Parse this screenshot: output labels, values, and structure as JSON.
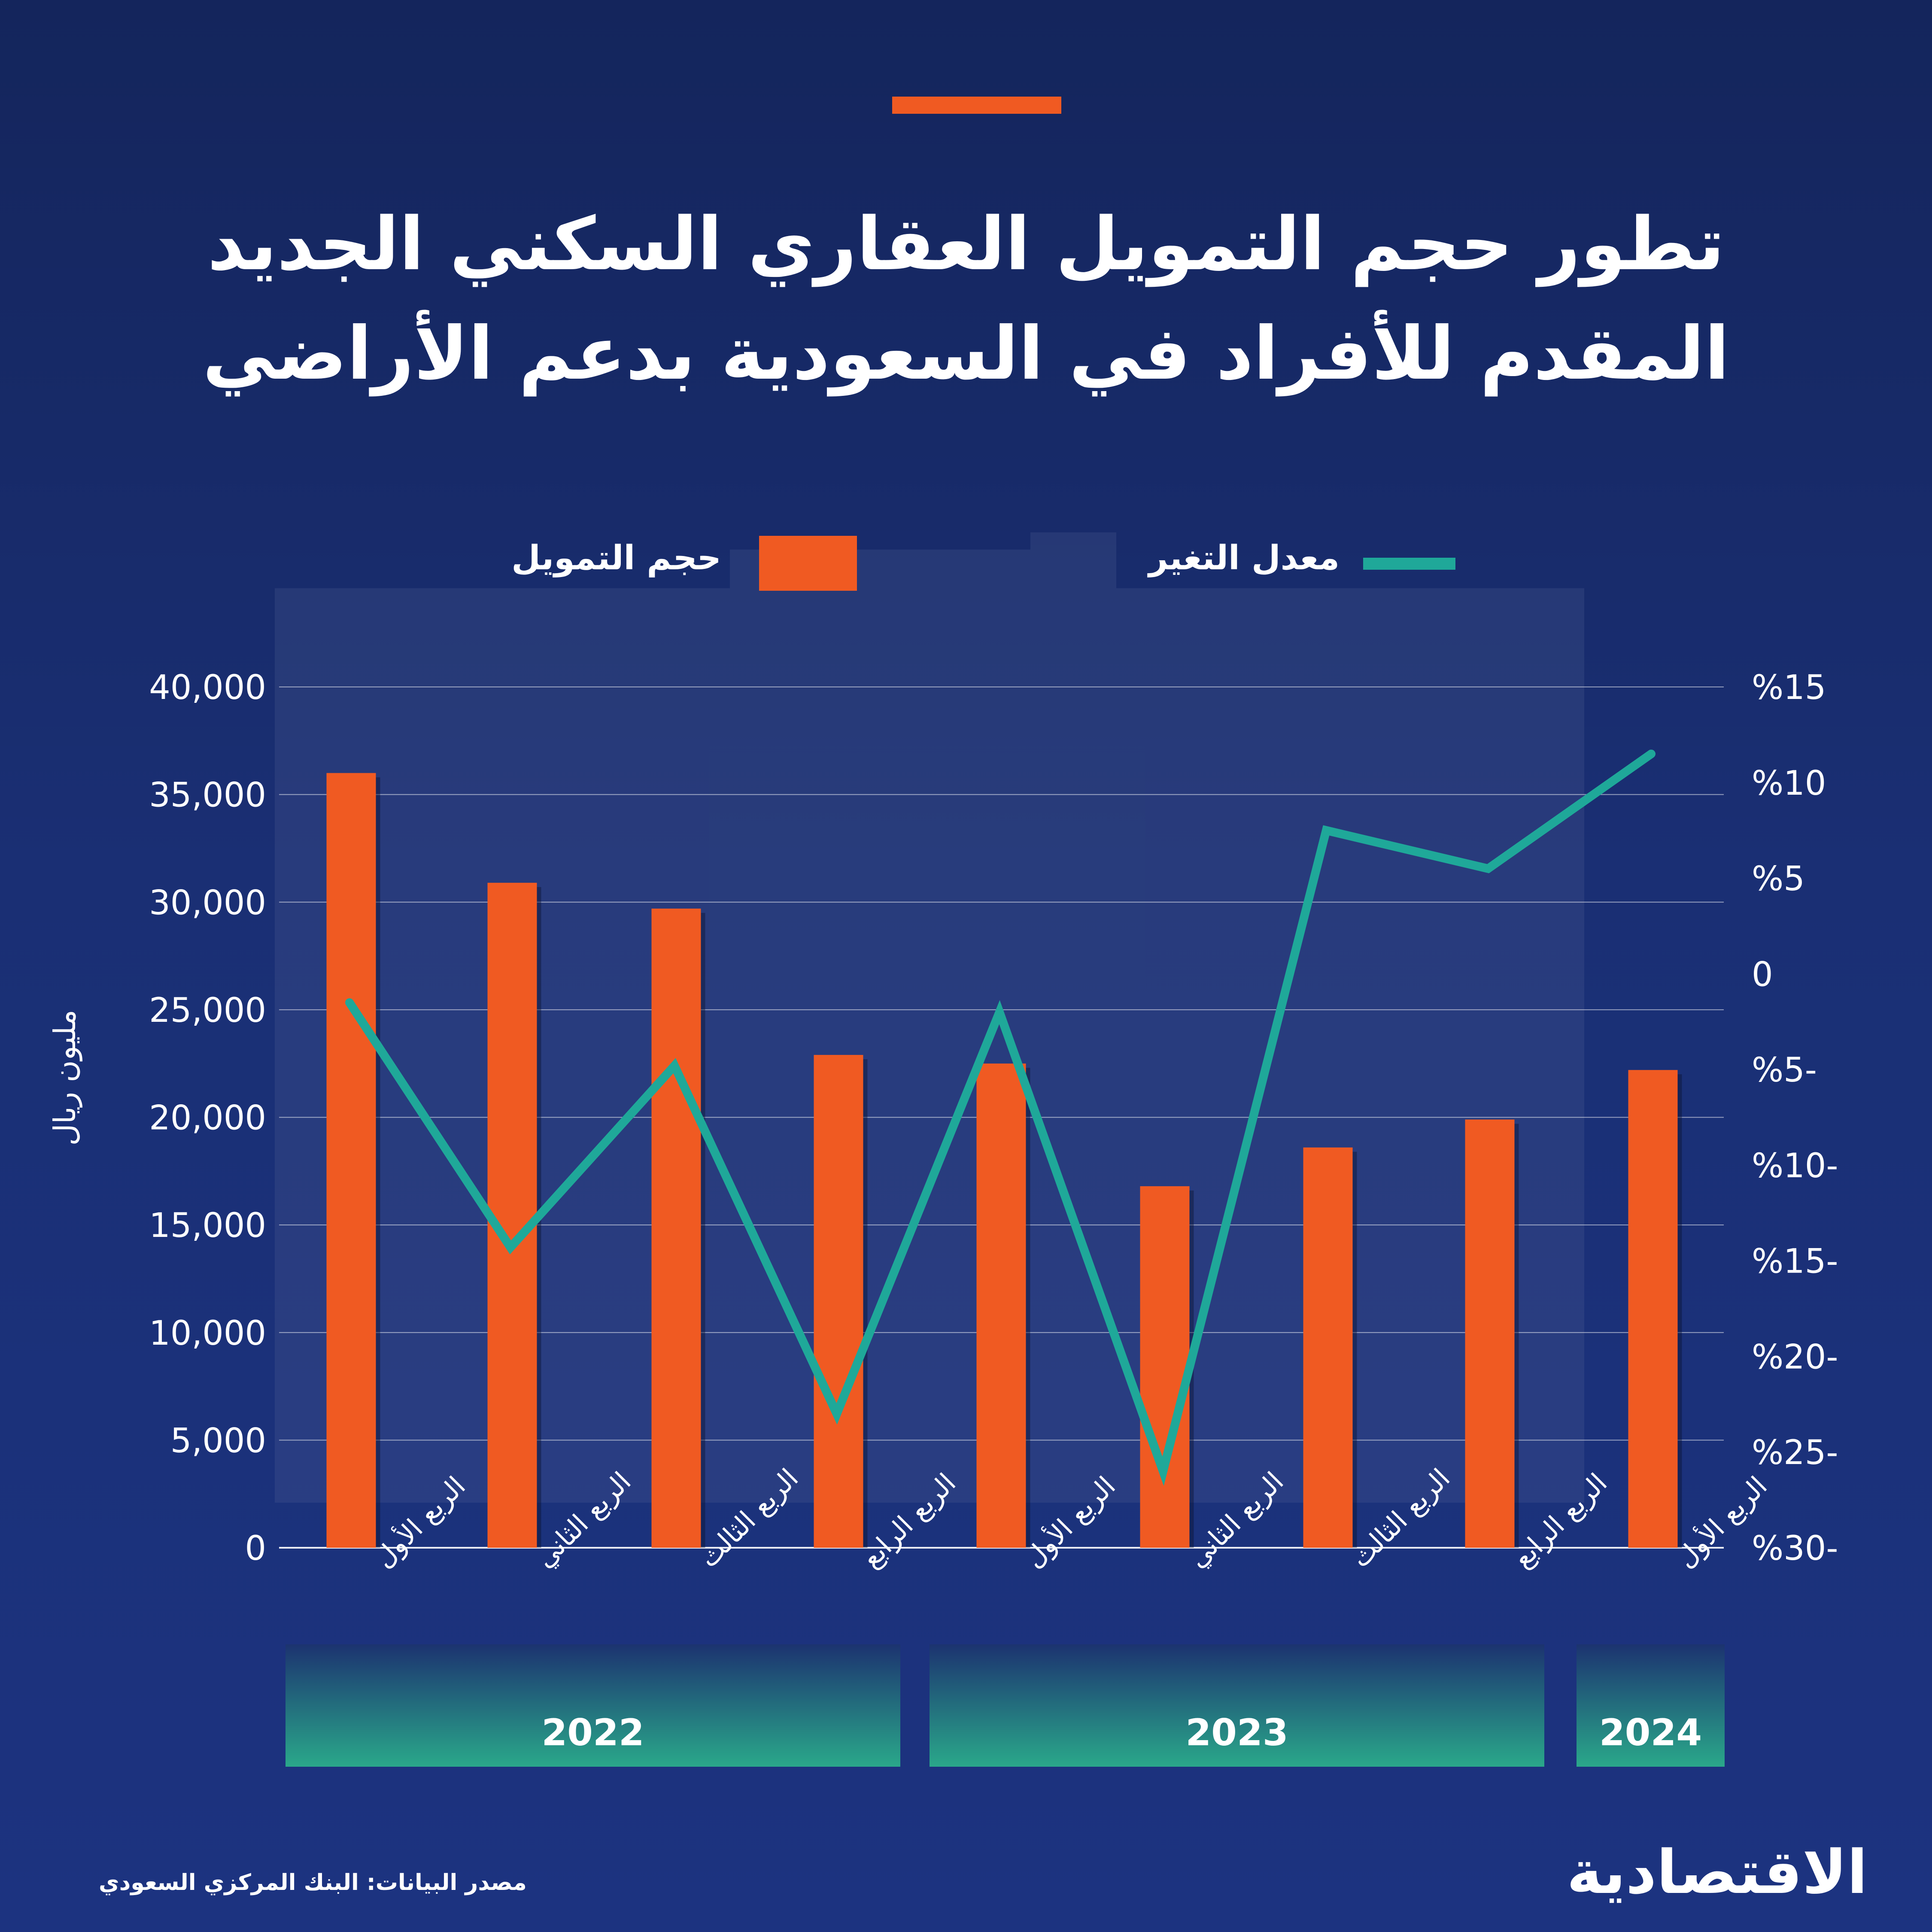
{
  "title_lines": [
    "تطور حجم التمويل العقاري السكني الجديد",
    "المقدم للأفراد في السعودية بدعم الأراضي"
  ],
  "legend": {
    "bars_label": "حجم التمويل",
    "line_label": "معدل التغير"
  },
  "source": "مصدر البيانات: البنك المركزي السعودي",
  "logo_text": "الاقتصادية",
  "colors": {
    "accent": "#f05a22",
    "line": "#1fa899",
    "year_band_top": "#1c3370",
    "year_band_bottom": "#2aa88a"
  },
  "chart_data": {
    "type": "bar",
    "ylabel": "مليون ريال",
    "ylim": [
      0,
      40000
    ],
    "y_ticks": [
      "0",
      "5,000",
      "10,000",
      "15,000",
      "20,000",
      "25,000",
      "30,000",
      "35,000",
      "40,000"
    ],
    "y2lim": [
      -30,
      15
    ],
    "y2_ticks": [
      "%30-",
      "%25-",
      "%20-",
      "%15-",
      "%10-",
      "%5-",
      "0",
      "%5",
      "%10",
      "%15"
    ],
    "categories": [
      "الربع الأول",
      "الربع الثاني",
      "الربع الثالث",
      "الربع الرابع",
      "الربع الأول",
      "الربع الثاني",
      "الربع الثالث",
      "الربع الرابع",
      "الربع الأول"
    ],
    "year_groups": [
      {
        "label": "2022",
        "start": 0,
        "end": 3
      },
      {
        "label": "2023",
        "start": 4,
        "end": 7
      },
      {
        "label": "2024",
        "start": 8,
        "end": 8
      }
    ],
    "series": [
      {
        "name": "حجم التمويل",
        "type": "bar",
        "axis": "left",
        "values": [
          36000,
          30900,
          29700,
          22900,
          22500,
          16800,
          18600,
          19900,
          22200
        ]
      },
      {
        "name": "معدل التغير",
        "type": "line",
        "axis": "right",
        "values": [
          -1.5,
          -14.3,
          -4.8,
          -23.0,
          -2.0,
          -26.0,
          7.5,
          5.5,
          11.5
        ]
      }
    ],
    "grid": true
  }
}
